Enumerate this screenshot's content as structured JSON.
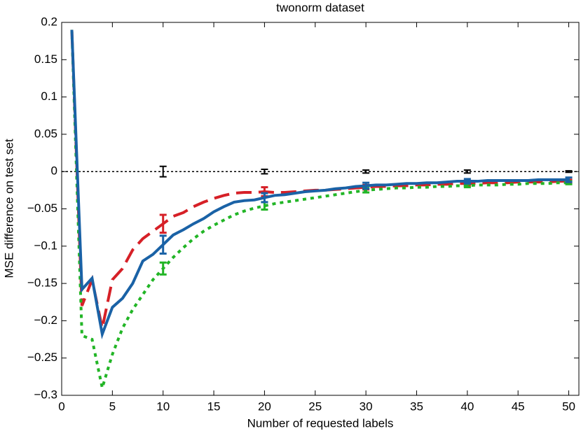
{
  "chart_data": {
    "type": "line",
    "title": "twonorm dataset",
    "xlabel": "Number of requested labels",
    "ylabel": "MSE difference on test set",
    "xlim": [
      0,
      51
    ],
    "ylim": [
      -0.3,
      0.2
    ],
    "xticks": [
      0,
      5,
      10,
      15,
      20,
      25,
      30,
      35,
      40,
      45,
      50
    ],
    "yticks": [
      {
        "value": -0.3,
        "label": "−0.3"
      },
      {
        "value": -0.25,
        "label": "−0.25"
      },
      {
        "value": -0.2,
        "label": "−0.2"
      },
      {
        "value": -0.15,
        "label": "−0.15"
      },
      {
        "value": -0.1,
        "label": "−0.1"
      },
      {
        "value": -0.05,
        "label": "−0.05"
      },
      0,
      0.05,
      0.1,
      0.15,
      0.2
    ],
    "x": [
      1,
      2,
      3,
      4,
      5,
      6,
      7,
      8,
      9,
      10,
      11,
      12,
      13,
      14,
      15,
      16,
      17,
      18,
      19,
      20,
      21,
      22,
      23,
      24,
      25,
      26,
      27,
      28,
      29,
      30,
      31,
      32,
      33,
      34,
      35,
      36,
      37,
      38,
      39,
      40,
      41,
      42,
      43,
      44,
      45,
      46,
      47,
      48,
      49,
      50
    ],
    "series": [
      {
        "color": "#d62027",
        "dash": "dashed",
        "values": [
          0.19,
          -0.18,
          -0.145,
          -0.21,
          -0.145,
          -0.13,
          -0.105,
          -0.09,
          -0.08,
          -0.07,
          -0.06,
          -0.055,
          -0.047,
          -0.041,
          -0.036,
          -0.032,
          -0.029,
          -0.028,
          -0.028,
          -0.027,
          -0.028,
          -0.028,
          -0.027,
          -0.026,
          -0.025,
          -0.025,
          -0.024,
          -0.023,
          -0.022,
          -0.021,
          -0.02,
          -0.02,
          -0.019,
          -0.019,
          -0.018,
          -0.018,
          -0.017,
          -0.017,
          -0.016,
          -0.016,
          -0.016,
          -0.015,
          -0.015,
          -0.015,
          -0.014,
          -0.014,
          -0.014,
          -0.014,
          -0.013,
          -0.013
        ],
        "errors": [
          null,
          null,
          null,
          null,
          null,
          null,
          null,
          null,
          null,
          0.012,
          null,
          null,
          null,
          null,
          null,
          null,
          null,
          null,
          null,
          0.006,
          null,
          null,
          null,
          null,
          null,
          null,
          null,
          null,
          null,
          0.003,
          null,
          null,
          null,
          null,
          null,
          null,
          null,
          null,
          null,
          0.003,
          null,
          null,
          null,
          null,
          null,
          null,
          null,
          null,
          null,
          0.002
        ]
      },
      {
        "color": "#22b526",
        "dash": "dotted",
        "values": [
          0.19,
          -0.22,
          -0.225,
          -0.29,
          -0.245,
          -0.21,
          -0.185,
          -0.165,
          -0.145,
          -0.13,
          -0.115,
          -0.102,
          -0.09,
          -0.08,
          -0.072,
          -0.065,
          -0.058,
          -0.053,
          -0.049,
          -0.046,
          -0.043,
          -0.041,
          -0.039,
          -0.037,
          -0.035,
          -0.033,
          -0.031,
          -0.029,
          -0.027,
          -0.025,
          -0.024,
          -0.023,
          -0.022,
          -0.022,
          -0.021,
          -0.021,
          -0.02,
          -0.02,
          -0.019,
          -0.019,
          -0.018,
          -0.018,
          -0.018,
          -0.017,
          -0.017,
          -0.016,
          -0.016,
          -0.016,
          -0.015,
          -0.015
        ],
        "errors": [
          null,
          null,
          null,
          null,
          null,
          null,
          null,
          null,
          null,
          0.008,
          null,
          null,
          null,
          null,
          null,
          null,
          null,
          null,
          null,
          0.005,
          null,
          null,
          null,
          null,
          null,
          null,
          null,
          null,
          null,
          0.003,
          null,
          null,
          null,
          null,
          null,
          null,
          null,
          null,
          null,
          0.002,
          null,
          null,
          null,
          null,
          null,
          null,
          null,
          null,
          null,
          0.002
        ]
      },
      {
        "color": "#1a62a6",
        "dash": "solid",
        "values": [
          0.19,
          -0.158,
          -0.143,
          -0.218,
          -0.182,
          -0.17,
          -0.15,
          -0.12,
          -0.111,
          -0.098,
          -0.085,
          -0.078,
          -0.07,
          -0.063,
          -0.054,
          -0.047,
          -0.041,
          -0.039,
          -0.038,
          -0.035,
          -0.032,
          -0.031,
          -0.029,
          -0.027,
          -0.026,
          -0.025,
          -0.023,
          -0.022,
          -0.02,
          -0.019,
          -0.018,
          -0.018,
          -0.017,
          -0.016,
          -0.016,
          -0.015,
          -0.015,
          -0.014,
          -0.013,
          -0.013,
          -0.013,
          -0.012,
          -0.012,
          -0.012,
          -0.012,
          -0.012,
          -0.011,
          -0.011,
          -0.011,
          -0.011
        ],
        "errors": [
          null,
          null,
          null,
          null,
          null,
          null,
          null,
          null,
          null,
          0.012,
          null,
          null,
          null,
          null,
          null,
          null,
          null,
          null,
          null,
          0.006,
          null,
          null,
          null,
          null,
          null,
          null,
          null,
          null,
          null,
          0.004,
          null,
          null,
          null,
          null,
          null,
          null,
          null,
          null,
          null,
          0.003,
          null,
          null,
          null,
          null,
          null,
          null,
          null,
          null,
          null,
          0.003
        ]
      }
    ],
    "reference": {
      "y": 0,
      "color": "#000000",
      "x": [
        10,
        20,
        30,
        40,
        50
      ],
      "errors": [
        0.007,
        0.003,
        0.002,
        0.002,
        0.001
      ]
    }
  }
}
